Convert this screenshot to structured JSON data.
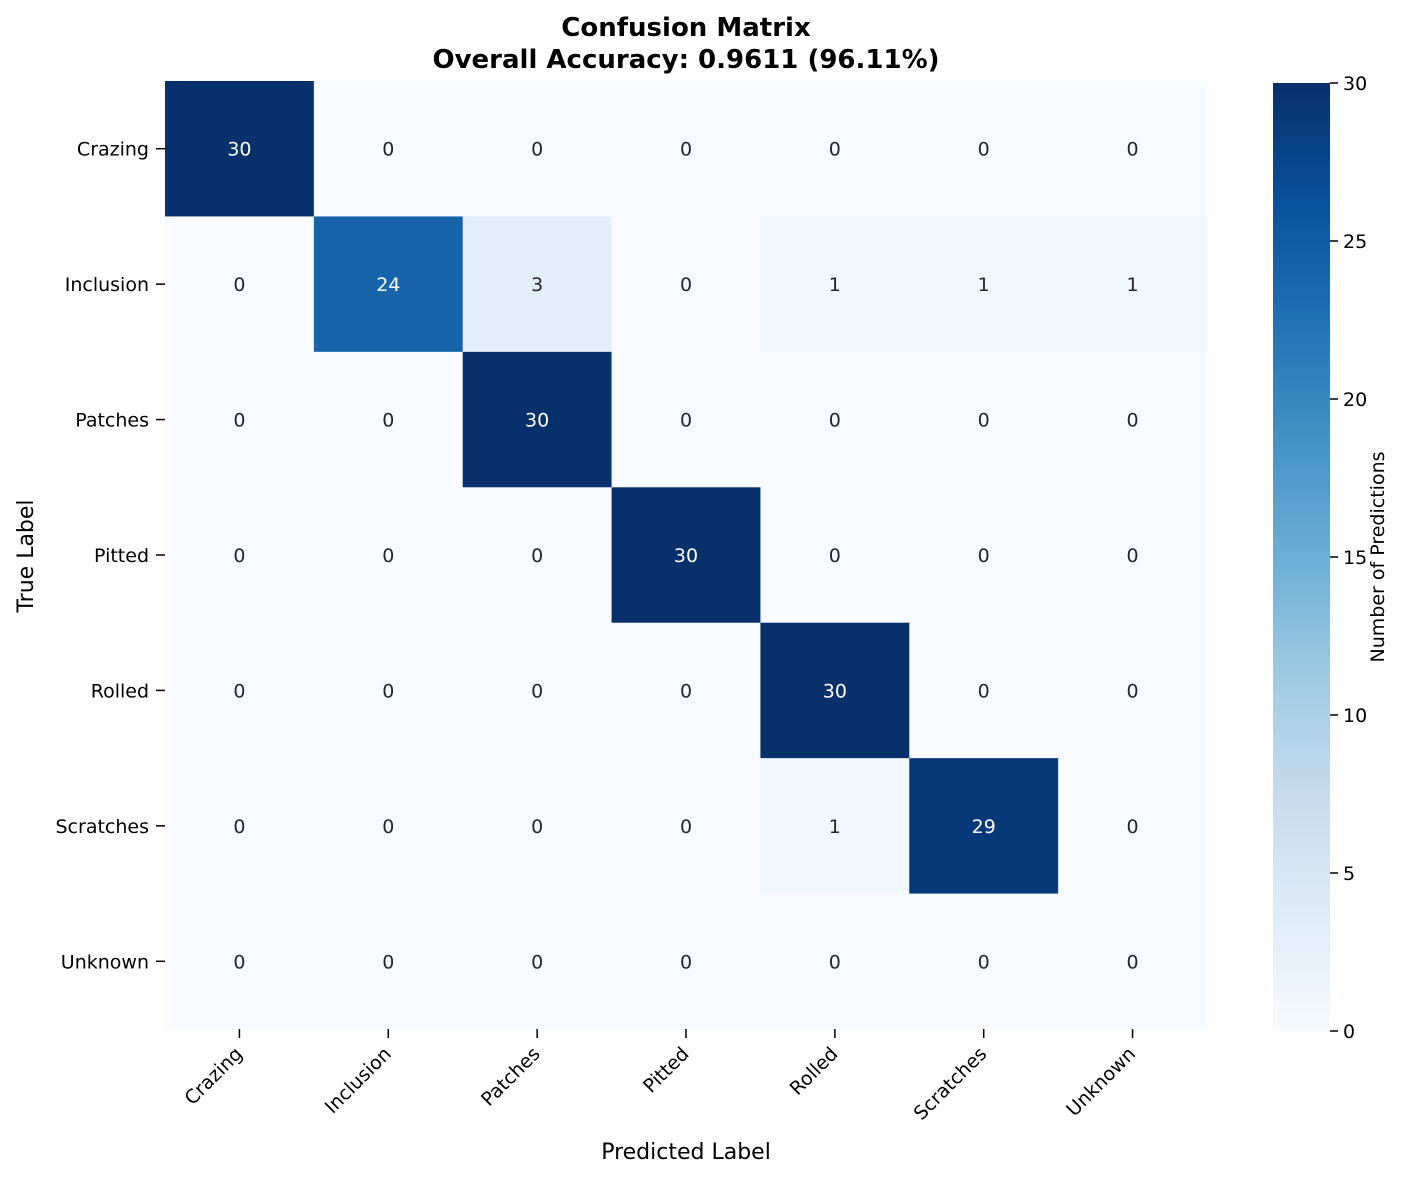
{
  "chart_data": {
    "type": "heatmap",
    "title": "Confusion Matrix",
    "subtitle": "Overall Accuracy: 0.9611 (96.11%)",
    "xlabel": "Predicted Label",
    "ylabel": "True Label",
    "x_categories": [
      "Crazing",
      "Inclusion",
      "Patches",
      "Pitted",
      "Rolled",
      "Scratches",
      "Unknown"
    ],
    "y_categories": [
      "Crazing",
      "Inclusion",
      "Patches",
      "Pitted",
      "Rolled",
      "Scratches",
      "Unknown"
    ],
    "matrix": [
      [
        30,
        0,
        0,
        0,
        0,
        0,
        0
      ],
      [
        0,
        24,
        3,
        0,
        1,
        1,
        1
      ],
      [
        0,
        0,
        30,
        0,
        0,
        0,
        0
      ],
      [
        0,
        0,
        0,
        30,
        0,
        0,
        0
      ],
      [
        0,
        0,
        0,
        0,
        30,
        0,
        0
      ],
      [
        0,
        0,
        0,
        0,
        1,
        29,
        0
      ],
      [
        0,
        0,
        0,
        0,
        0,
        0,
        0
      ]
    ],
    "colorbar": {
      "label": "Number of Predictions",
      "range": [
        0,
        30
      ],
      "ticks": [
        0,
        5,
        10,
        15,
        20,
        25,
        30
      ]
    },
    "colormap": "Blues",
    "grid": false
  }
}
